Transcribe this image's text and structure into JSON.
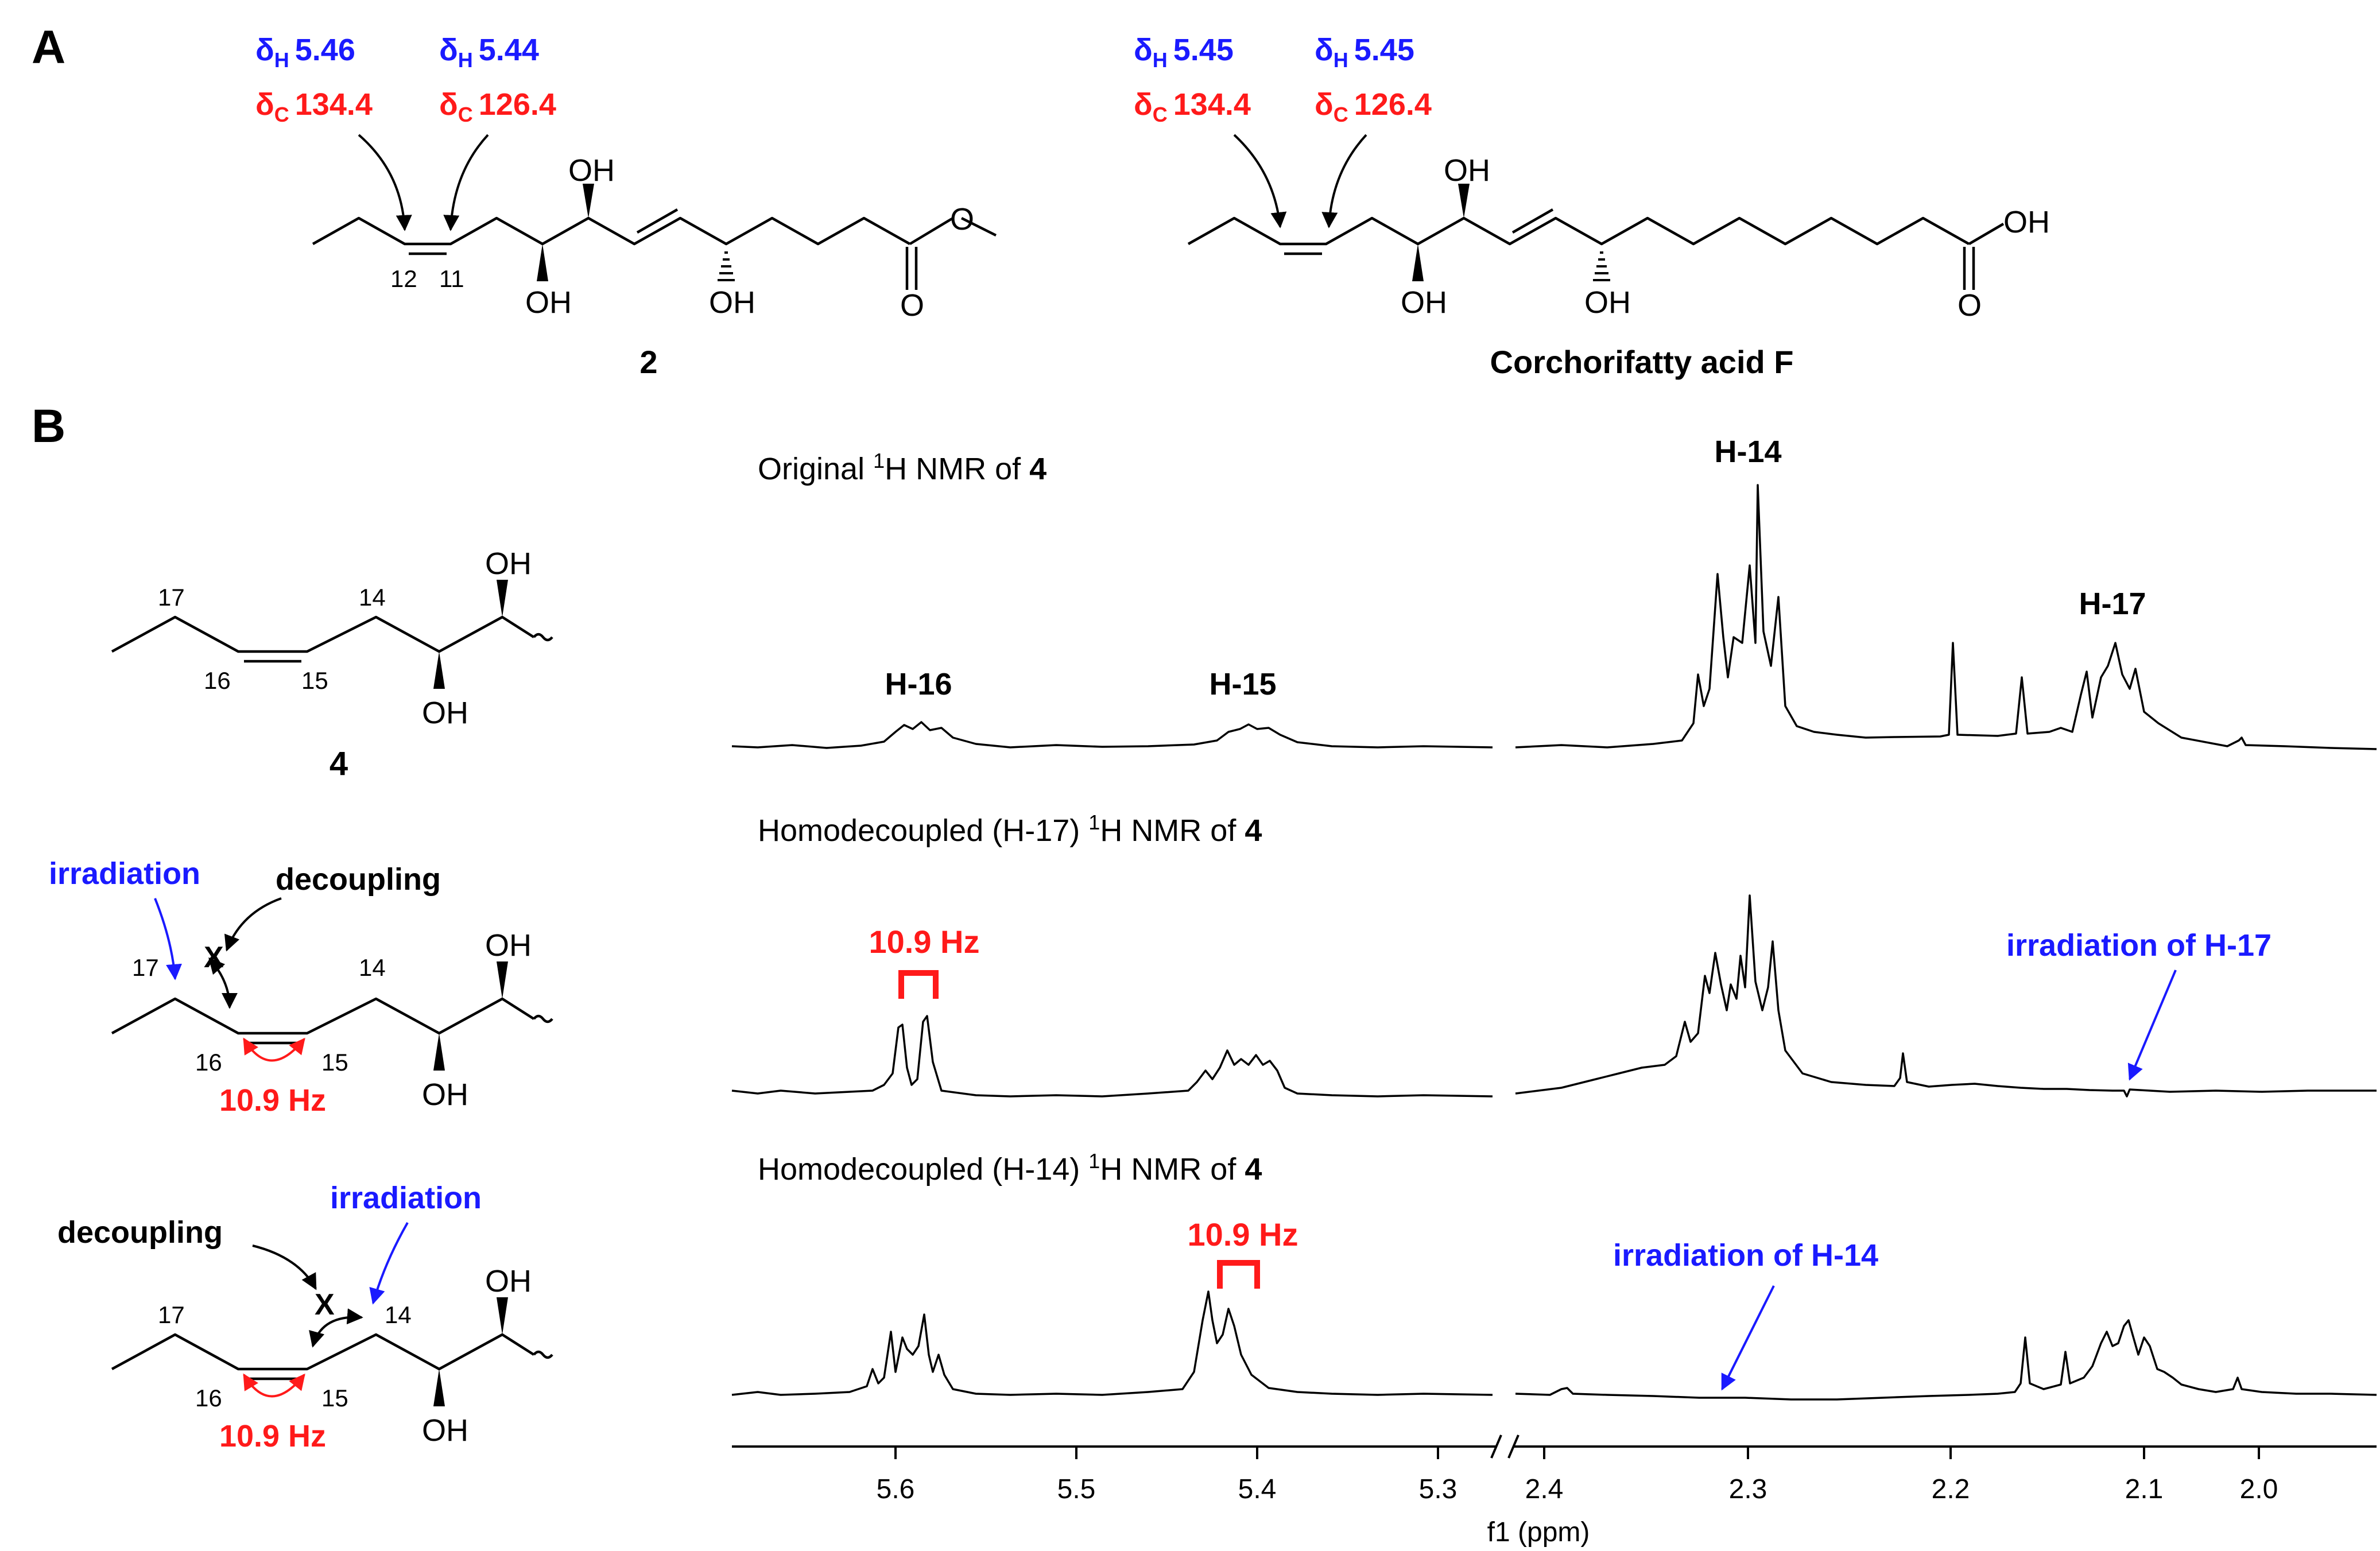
{
  "panels": {
    "a": "A",
    "b": "B"
  },
  "compound2": {
    "label": "2",
    "shifts": [
      {
        "sym_h": "δ",
        "sub_h": "H",
        "val_h": "5.46",
        "sym_c": "δ",
        "sub_c": "C",
        "val_c": "134.4"
      },
      {
        "sym_h": "δ",
        "sub_h": "H",
        "val_h": "5.44",
        "sym_c": "δ",
        "sub_c": "C",
        "val_c": "126.4"
      }
    ],
    "atoms": {
      "c12": "12",
      "c11": "11",
      "oh1": "OH",
      "oh2": "OH",
      "oh3": "OH",
      "o_carbonyl": "O",
      "o_ester": "O"
    }
  },
  "corchorifatty": {
    "label": "Corchorifatty acid F",
    "shifts": [
      {
        "sym_h": "δ",
        "sub_h": "H",
        "val_h": "5.45",
        "sym_c": "δ",
        "sub_c": "C",
        "val_c": "134.4"
      },
      {
        "sym_h": "δ",
        "sub_h": "H",
        "val_h": "5.45",
        "sym_c": "δ",
        "sub_c": "C",
        "val_c": "126.4"
      }
    ],
    "atoms": {
      "oh1": "OH",
      "oh2": "OH",
      "oh3": "OH",
      "acid": "OH",
      "o_carbonyl": "O"
    }
  },
  "compound4": {
    "label": "4",
    "atoms": {
      "c17": "17",
      "c16": "16",
      "c15": "15",
      "c14": "14",
      "oh_top": "OH",
      "oh_bottom": "OH"
    }
  },
  "scheme_h17": {
    "irradiation": "irradiation",
    "decoupling": "decoupling",
    "x_mark": "X",
    "coupling": "10.9 Hz",
    "atoms": {
      "c17": "17",
      "c16": "16",
      "c15": "15",
      "c14": "14",
      "oh_top": "OH",
      "oh_bottom": "OH"
    }
  },
  "scheme_h14": {
    "irradiation": "irradiation",
    "decoupling": "decoupling",
    "x_mark": "X",
    "coupling": "10.9 Hz",
    "atoms": {
      "c17": "17",
      "c16": "16",
      "c15": "15",
      "c14": "14",
      "oh_top": "OH",
      "oh_bottom": "OH"
    }
  },
  "spectra": {
    "original": {
      "pre": "Original ",
      "sup": "1",
      "post": "H NMR of ",
      "bold": "4"
    },
    "homo17": {
      "pre": "Homodecoupled (H-17) ",
      "sup": "1",
      "post": "H NMR of ",
      "bold": "4"
    },
    "homo14": {
      "pre": "Homodecoupled (H-14) ",
      "sup": "1",
      "post": "H NMR of ",
      "bold": "4"
    },
    "peak_labels": {
      "h16": "H-16",
      "h15": "H-15",
      "h14": "H-14",
      "h17": "H-17"
    },
    "coupling_h16": "10.9 Hz",
    "coupling_h15": "10.9 Hz",
    "irr_h17": "irradiation of H-17",
    "irr_h14": "irradiation of H-14"
  },
  "axis": {
    "label": "f1 (ppm)",
    "left_ticks": [
      "5.6",
      "5.5",
      "5.4",
      "5.3"
    ],
    "right_ticks": [
      "2.4",
      "2.3",
      "2.2",
      "2.1",
      "2.0"
    ]
  },
  "colors": {
    "blue": "#1a1aff",
    "red": "#ff1a1a"
  }
}
